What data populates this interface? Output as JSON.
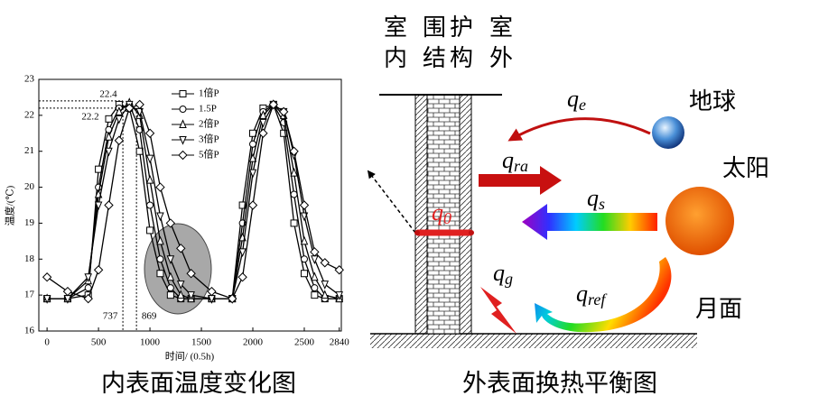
{
  "chart_data": {
    "type": "line",
    "xlabel": "时间/ (0.5h)",
    "ylabel": "温度/(℃)",
    "caption": "内表面温度变化图",
    "x": [
      0,
      200,
      400,
      500,
      600,
      700,
      800,
      900,
      1000,
      1100,
      1200,
      1300,
      1400,
      1600,
      1800,
      1900,
      2000,
      2100,
      2200,
      2300,
      2400,
      2500,
      2600,
      2700,
      2840
    ],
    "series": [
      {
        "name": "1倍P",
        "marker": "square",
        "color": "#000000",
        "values": [
          16.9,
          16.9,
          17.0,
          20.5,
          21.9,
          22.3,
          22.2,
          21.0,
          18.8,
          17.6,
          17.0,
          16.9,
          16.9,
          16.9,
          16.9,
          19.5,
          21.5,
          22.2,
          22.3,
          21.5,
          19.0,
          17.6,
          17.0,
          16.9,
          16.9
        ]
      },
      {
        "name": "1.5P",
        "marker": "circle",
        "color": "#000000",
        "values": [
          16.9,
          16.9,
          17.2,
          20.0,
          21.6,
          22.2,
          22.3,
          21.6,
          19.5,
          18.0,
          17.2,
          16.9,
          16.9,
          16.9,
          16.9,
          19.0,
          21.2,
          22.1,
          22.3,
          21.8,
          19.8,
          18.0,
          17.2,
          16.9,
          16.9
        ]
      },
      {
        "name": "2倍P",
        "marker": "triangle",
        "color": "#000000",
        "values": [
          16.9,
          16.9,
          17.4,
          19.8,
          21.4,
          22.1,
          22.35,
          22.0,
          20.2,
          18.5,
          17.5,
          17.0,
          16.9,
          16.9,
          16.9,
          18.6,
          20.8,
          22.0,
          22.3,
          22.0,
          20.4,
          18.5,
          17.5,
          17.0,
          16.9
        ]
      },
      {
        "name": "3倍P",
        "marker": "triangle-down",
        "color": "#000000",
        "values": [
          16.9,
          16.9,
          17.5,
          19.5,
          21.0,
          21.9,
          22.3,
          22.1,
          20.8,
          19.2,
          18.0,
          17.3,
          17.0,
          16.9,
          16.9,
          18.2,
          20.4,
          21.8,
          22.3,
          22.1,
          20.9,
          19.2,
          18.0,
          17.3,
          17.0
        ]
      },
      {
        "name": "5倍P",
        "marker": "diamond",
        "color": "#000000",
        "values": [
          17.5,
          17.1,
          16.9,
          17.7,
          19.5,
          21.3,
          22.2,
          22.3,
          21.5,
          20.0,
          19.0,
          18.3,
          17.6,
          17.1,
          16.9,
          17.5,
          19.5,
          21.5,
          22.3,
          22.1,
          21.0,
          19.5,
          18.2,
          17.9,
          17.7
        ]
      }
    ],
    "xlim": [
      -80,
      2860
    ],
    "ylim": [
      16,
      23
    ],
    "xticks": [
      0,
      500,
      1000,
      1500,
      2000,
      2500,
      2840
    ],
    "yticks": [
      16,
      17,
      18,
      19,
      20,
      21,
      22,
      23
    ],
    "hlines": [
      22.4,
      22.2
    ],
    "vlines": [
      737,
      869
    ]
  },
  "diagram": {
    "caption": "外表面换热平衡图",
    "columns": [
      [
        "室",
        "内"
      ],
      [
        "围护",
        "结构"
      ],
      [
        "室",
        "外"
      ]
    ],
    "bodies": {
      "earth": "地球",
      "sun": "太阳",
      "moon": "月面"
    },
    "flows": {
      "qe": {
        "main": "q",
        "sub": "e"
      },
      "qra": {
        "main": "q",
        "sub": "ra"
      },
      "qs": {
        "main": "q",
        "sub": "s"
      },
      "q0": {
        "main": "q",
        "sub": "0"
      },
      "qg": {
        "main": "q",
        "sub": "g"
      },
      "qref": {
        "main": "q",
        "sub": "ref"
      }
    }
  }
}
